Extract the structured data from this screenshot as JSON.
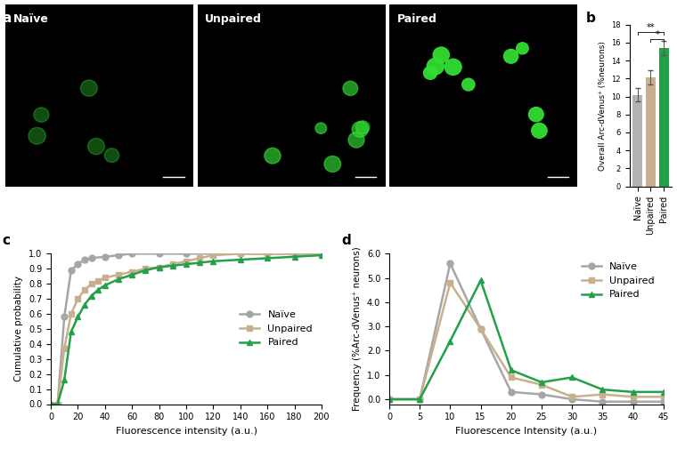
{
  "chart_data": [
    {
      "type": "image",
      "annotations": [
        "a"
      ],
      "categories": [
        "Naïve",
        "Unpaired",
        "Paired"
      ]
    },
    {
      "type": "bar",
      "annotations": [
        "b"
      ],
      "categories": [
        "Naïve",
        "Unpaired",
        "Paired"
      ],
      "values": [
        10.2,
        12.1,
        15.4
      ],
      "errors": [
        0.7,
        0.8,
        0.8
      ],
      "colors": [
        "#b3b3b3",
        "#c8b08e",
        "#23a04a"
      ],
      "y_label": "Overall Arc-dVenus⁺ (%neurons)",
      "ylim": [
        0,
        18
      ],
      "yticks": [
        0,
        2,
        4,
        6,
        8,
        10,
        12,
        14,
        16,
        18
      ],
      "significance": [
        {
          "from": 0,
          "to": 2,
          "y": 17.2,
          "label": "**"
        },
        {
          "from": 1,
          "to": 2,
          "y": 16.4,
          "label": "*"
        }
      ]
    },
    {
      "type": "line",
      "annotations": [
        "c"
      ],
      "x_label": "Fluorescence intensity (a.u.)",
      "y_label": "Cumulative probability",
      "xlim": [
        0,
        200
      ],
      "xticks": [
        0,
        20,
        40,
        60,
        80,
        100,
        120,
        140,
        160,
        180,
        200
      ],
      "ylim": [
        0.0,
        1.0
      ],
      "yticks": [
        0.0,
        0.1,
        0.2,
        0.3,
        0.4,
        0.5,
        0.6,
        0.7,
        0.8,
        0.9,
        1.0
      ],
      "legend": "center right",
      "series": [
        {
          "name": "Naïve",
          "color": "#a6a6a6",
          "marker": "o",
          "x": [
            0,
            5,
            10,
            15,
            20,
            25,
            30,
            40,
            50,
            60,
            80,
            100,
            120,
            140,
            160,
            180,
            200
          ],
          "values": [
            0,
            0,
            0.58,
            0.89,
            0.93,
            0.96,
            0.97,
            0.98,
            0.99,
            1.0,
            1.0,
            1.0,
            1.0,
            1.0,
            1.0,
            1.0,
            1.0
          ]
        },
        {
          "name": "Unpaired",
          "color": "#c8b08e",
          "marker": "s",
          "x": [
            0,
            5,
            10,
            15,
            20,
            25,
            30,
            35,
            40,
            50,
            60,
            70,
            80,
            90,
            100,
            110,
            120,
            140,
            160,
            180,
            200
          ],
          "values": [
            0,
            0,
            0.37,
            0.6,
            0.7,
            0.76,
            0.8,
            0.82,
            0.84,
            0.86,
            0.88,
            0.9,
            0.91,
            0.93,
            0.95,
            0.97,
            0.99,
            1.0,
            1.0,
            1.0,
            1.0
          ]
        },
        {
          "name": "Paired",
          "color": "#23a04a",
          "marker": "^",
          "x": [
            0,
            5,
            10,
            15,
            20,
            25,
            30,
            35,
            40,
            50,
            60,
            70,
            80,
            90,
            100,
            110,
            120,
            140,
            160,
            180,
            200
          ],
          "values": [
            0,
            0,
            0.16,
            0.48,
            0.58,
            0.66,
            0.72,
            0.76,
            0.79,
            0.83,
            0.86,
            0.89,
            0.91,
            0.92,
            0.93,
            0.94,
            0.95,
            0.96,
            0.97,
            0.98,
            0.99
          ]
        }
      ]
    },
    {
      "type": "line",
      "annotations": [
        "d"
      ],
      "x_label": "Fluorescence Intensity (a.u.)",
      "y_label": "Frequency (%Arc-dVenus⁺ neurons)",
      "xlim": [
        0,
        45
      ],
      "xticks": [
        0,
        5,
        10,
        15,
        20,
        25,
        30,
        35,
        40,
        45
      ],
      "ylim": [
        -0.2,
        6.0
      ],
      "yticks": [
        0.0,
        1.0,
        2.0,
        3.0,
        4.0,
        5.0,
        6.0
      ],
      "legend": "upper right",
      "series": [
        {
          "name": "Naïve",
          "color": "#a6a6a6",
          "marker": "o",
          "x": [
            0,
            5,
            10,
            15,
            20,
            25,
            30,
            35,
            40,
            45
          ],
          "values": [
            0,
            0,
            5.6,
            2.9,
            0.3,
            0.2,
            0.0,
            -0.1,
            -0.1,
            -0.1
          ]
        },
        {
          "name": "Unpaired",
          "color": "#c8b08e",
          "marker": "s",
          "x": [
            0,
            5,
            10,
            15,
            20,
            25,
            30,
            35,
            40,
            45
          ],
          "values": [
            0,
            0,
            4.8,
            2.9,
            0.9,
            0.6,
            0.1,
            0.2,
            0.1,
            0.1
          ]
        },
        {
          "name": "Paired",
          "color": "#23a04a",
          "marker": "^",
          "x": [
            0,
            5,
            10,
            15,
            20,
            25,
            30,
            35,
            40,
            45
          ],
          "values": [
            0,
            0,
            2.4,
            4.9,
            1.2,
            0.7,
            0.9,
            0.4,
            0.3,
            0.3
          ]
        }
      ]
    }
  ]
}
